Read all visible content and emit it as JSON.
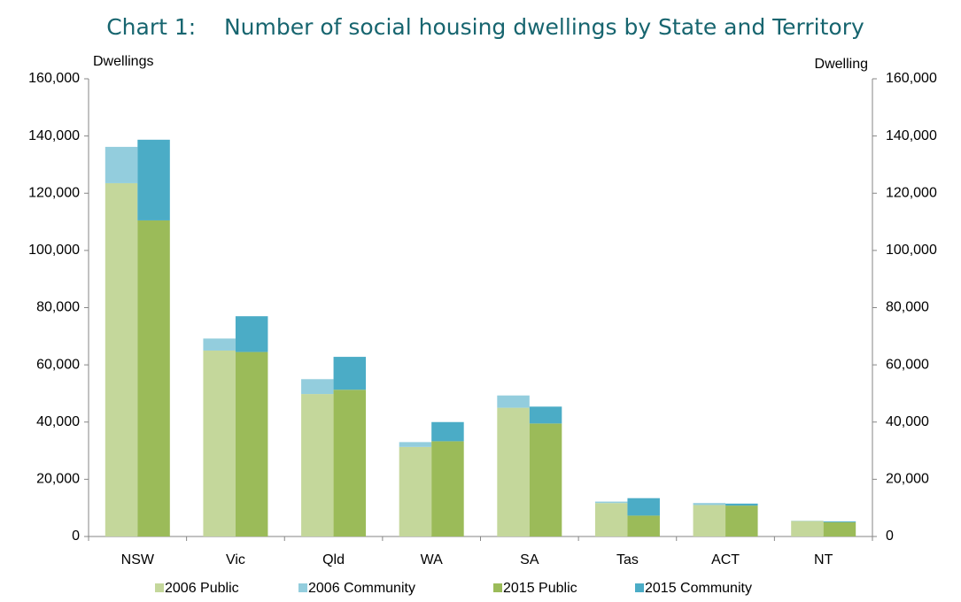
{
  "chart_data": {
    "type": "bar",
    "title": "Chart 1:    Number of social housing dwellings by State and Territory",
    "ylabel": "Dwellings",
    "y2label": "Dwelling",
    "categories": [
      "NSW",
      "Vic",
      "Qld",
      "WA",
      "SA",
      "Tas",
      "ACT",
      "NT"
    ],
    "series": [
      {
        "name": "2006 Public",
        "color": "#c4d79b",
        "values": [
          123500,
          65000,
          49800,
          31300,
          45000,
          11700,
          11000,
          5400
        ]
      },
      {
        "name": "2006 Community",
        "color": "#93cddd",
        "values": [
          12700,
          4200,
          5200,
          1700,
          4300,
          500,
          700,
          100
        ]
      },
      {
        "name": "2015 Public",
        "color": "#9bbb59",
        "values": [
          110500,
          64500,
          51300,
          33300,
          39500,
          7300,
          10800,
          5000
        ]
      },
      {
        "name": "2015 Community",
        "color": "#4bacc6",
        "values": [
          28200,
          12500,
          11500,
          6700,
          5900,
          6100,
          700,
          300
        ]
      }
    ],
    "ylim": [
      0,
      160000
    ],
    "yticks": [
      0,
      {
        "value": 20000,
        "label": "20,000"
      },
      {
        "value": 40000,
        "label": "40,000"
      },
      {
        "value": 60000,
        "label": "60,000"
      },
      {
        "value": 80000,
        "label": "80,000"
      },
      {
        "value": 100000,
        "label": "100,000"
      },
      {
        "value": 120000,
        "label": "120,000"
      },
      {
        "value": 140000,
        "label": "140,000"
      },
      {
        "value": 160000,
        "label": "160,000"
      }
    ],
    "y2lim": [
      0,
      160000
    ],
    "y2ticks": [
      0,
      {
        "value": 20000,
        "label": "20,000"
      },
      {
        "value": 40000,
        "label": "40,000"
      },
      {
        "value": 60000,
        "label": "60,000"
      },
      {
        "value": 80000,
        "label": "80,000"
      },
      {
        "value": 100000,
        "label": "100,000"
      },
      {
        "value": 120000,
        "label": "120,000"
      },
      {
        "value": 140000,
        "label": "140,000"
      },
      {
        "value": 160000,
        "label": "160,000"
      }
    ],
    "grid": false,
    "legend": "bottom"
  }
}
